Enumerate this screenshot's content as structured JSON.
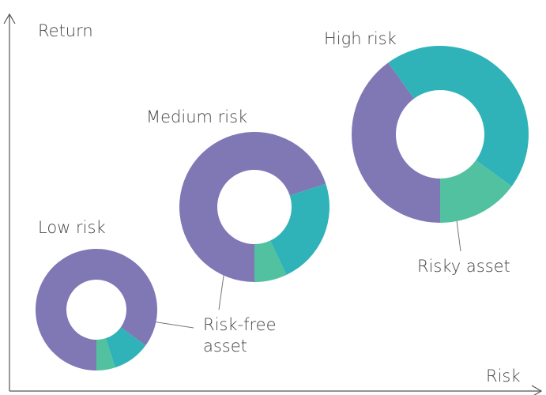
{
  "axes": {
    "y_label": "Return",
    "x_label": "Risk"
  },
  "chart_data": [
    {
      "type": "pie",
      "title": "Low risk",
      "values": [
        85,
        10,
        5
      ],
      "colors": [
        "#8077b5",
        "#2fb3b8",
        "#52c1a0"
      ]
    },
    {
      "type": "pie",
      "title": "Medium risk",
      "values": [
        70,
        23,
        7
      ],
      "colors": [
        "#8077b5",
        "#2fb3b8",
        "#52c1a0"
      ]
    },
    {
      "type": "pie",
      "title": "High risk",
      "values": [
        40,
        45,
        15
      ],
      "colors": [
        "#8077b5",
        "#2fb3b8",
        "#52c1a0"
      ]
    }
  ],
  "annotations": [
    {
      "lines": [
        "Risk-free",
        "asset"
      ]
    },
    {
      "lines": [
        "Risky asset"
      ]
    }
  ]
}
